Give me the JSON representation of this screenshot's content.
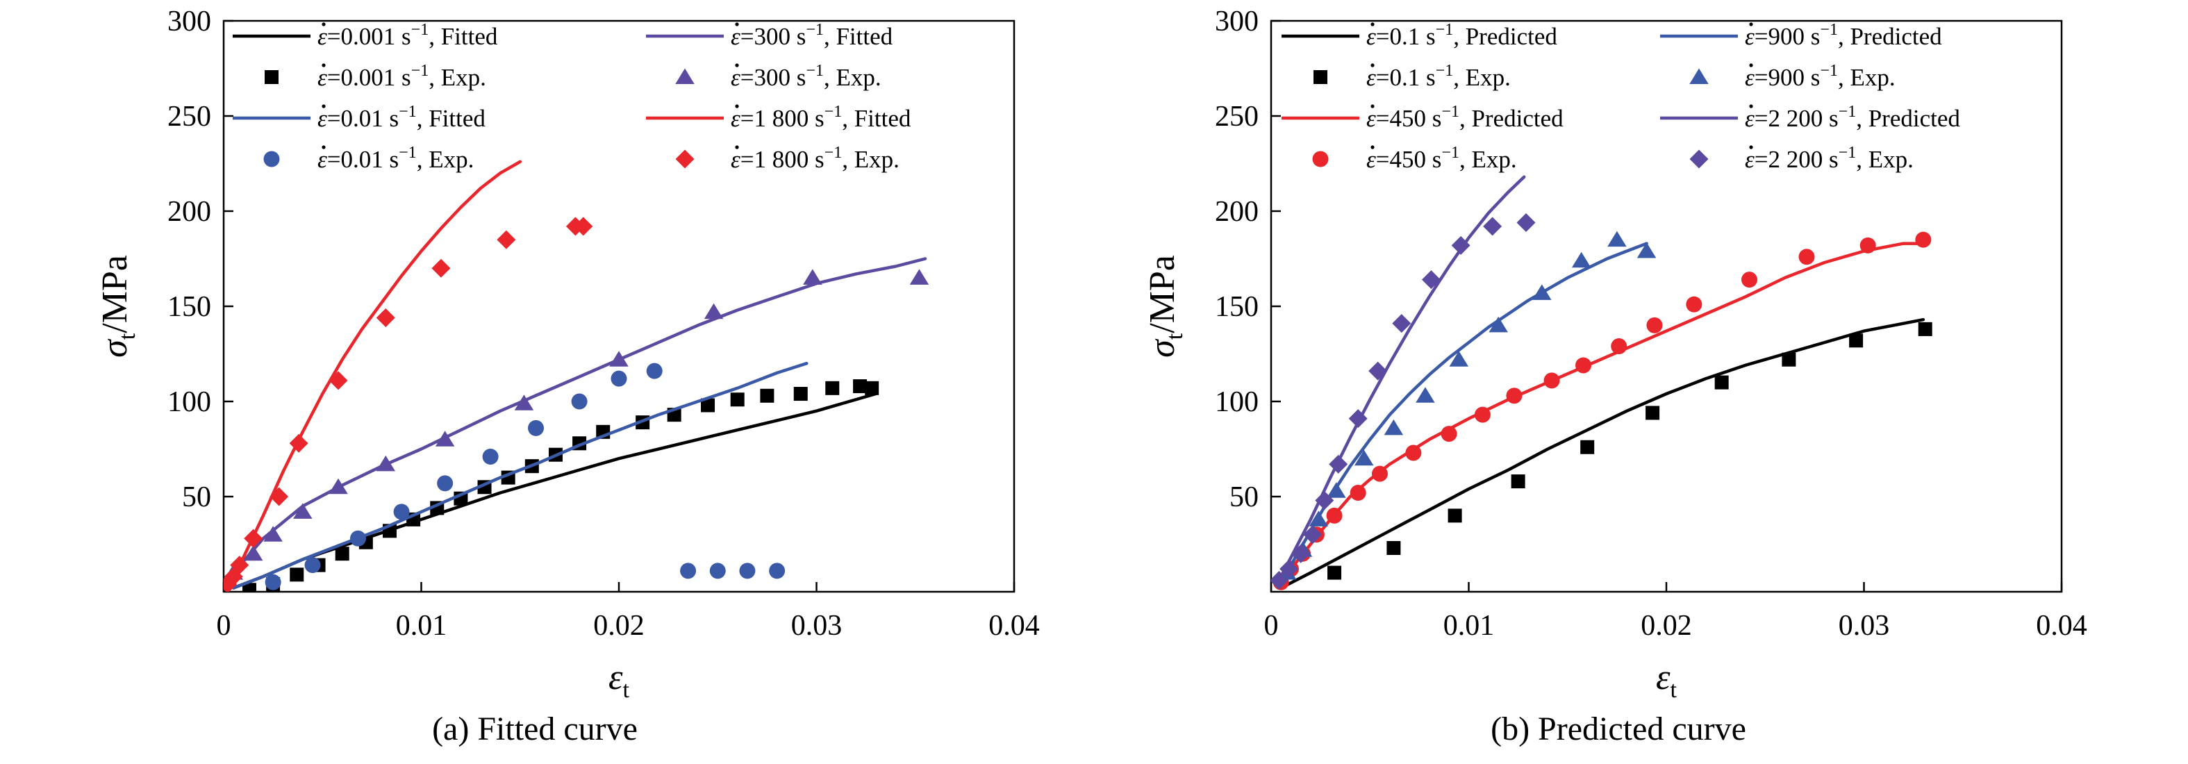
{
  "chart_data": [
    {
      "type": "line",
      "title": "",
      "caption": "(a) Fitted curve",
      "xlabel": "εt",
      "ylabel": "σt/MPa",
      "xlim": [
        0,
        0.04
      ],
      "ylim": [
        0,
        300
      ],
      "x_ticks": [
        "0",
        "0.01",
        "0.02",
        "0.03",
        "0.04"
      ],
      "y_ticks": [
        "50",
        "100",
        "150",
        "200",
        "250",
        "300"
      ],
      "legend_position": "top",
      "series": [
        {
          "name": "ε̇=0.001 s⁻¹, Fitted",
          "kind": "line",
          "color": "#000000",
          "x": [
            0.0005,
            0.002,
            0.004,
            0.006,
            0.008,
            0.01,
            0.012,
            0.014,
            0.016,
            0.018,
            0.02,
            0.022,
            0.024,
            0.026,
            0.028,
            0.03,
            0.033
          ],
          "y": [
            2,
            8,
            17,
            24,
            31,
            38,
            45,
            52,
            58,
            64,
            70,
            75,
            80,
            85,
            90,
            95,
            104
          ]
        },
        {
          "name": "ε̇=0.001 s⁻¹, Exp.",
          "kind": "marker",
          "marker": "square",
          "color": "#000000",
          "x": [
            0.0013,
            0.0025,
            0.0037,
            0.0048,
            0.006,
            0.0072,
            0.0084,
            0.0096,
            0.0108,
            0.012,
            0.0132,
            0.0144,
            0.0156,
            0.0168,
            0.018,
            0.0192,
            0.0212,
            0.0228,
            0.0245,
            0.026,
            0.0275,
            0.0292,
            0.0308,
            0.0322,
            0.0328
          ],
          "y": [
            1,
            4,
            9,
            14,
            20,
            26,
            32,
            38,
            44,
            49,
            55,
            60,
            66,
            72,
            78,
            84,
            89,
            93,
            98,
            101,
            103,
            104,
            107,
            108,
            107
          ]
        },
        {
          "name": "ε̇=0.01 s⁻¹, Fitted",
          "kind": "line",
          "color": "#3a5aa8",
          "x": [
            0.0005,
            0.002,
            0.004,
            0.006,
            0.008,
            0.01,
            0.012,
            0.014,
            0.016,
            0.018,
            0.02,
            0.022,
            0.024,
            0.026,
            0.028,
            0.0295
          ],
          "y": [
            2,
            8,
            17,
            25,
            33,
            42,
            51,
            60,
            68,
            77,
            85,
            93,
            100,
            107,
            115,
            120
          ]
        },
        {
          "name": "ε̇=0.01 s⁻¹, Exp.",
          "kind": "marker",
          "marker": "circle",
          "color": "#3a5aa8",
          "x": [
            0.0025,
            0.0045,
            0.0068,
            0.009,
            0.0112,
            0.0135,
            0.0158,
            0.018,
            0.02,
            0.0218,
            0.0235,
            0.025,
            0.0265,
            0.028
          ],
          "y": [
            5,
            14,
            28,
            42,
            57,
            71,
            86,
            100,
            112,
            116,
            11,
            11,
            11,
            11
          ]
        },
        {
          "name": "ε̇=300 s⁻¹, Fitted",
          "kind": "line",
          "color": "#5b4aa0",
          "x": [
            0.0005,
            0.002,
            0.004,
            0.006,
            0.008,
            0.01,
            0.012,
            0.014,
            0.016,
            0.018,
            0.02,
            0.022,
            0.024,
            0.026,
            0.028,
            0.03,
            0.032,
            0.034,
            0.0355
          ],
          "y": [
            10,
            28,
            45,
            56,
            66,
            75,
            85,
            95,
            104,
            113,
            122,
            131,
            140,
            148,
            155,
            162,
            167,
            171,
            175
          ]
        },
        {
          "name": "ε̇=300 s⁻¹, Exp.",
          "kind": "marker",
          "marker": "triangle",
          "color": "#5b4aa0",
          "x": [
            0.0005,
            0.0015,
            0.0025,
            0.004,
            0.0058,
            0.0082,
            0.0112,
            0.0152,
            0.02,
            0.0248,
            0.0298,
            0.0352
          ],
          "y": [
            10,
            20,
            30,
            42,
            55,
            67,
            80,
            99,
            122,
            147,
            165,
            165
          ]
        },
        {
          "name": "ε̇=1 800 s⁻¹, Fitted",
          "kind": "line",
          "color": "#e8262b",
          "x": [
            0.0003,
            0.001,
            0.002,
            0.003,
            0.004,
            0.005,
            0.006,
            0.007,
            0.008,
            0.009,
            0.01,
            0.011,
            0.012,
            0.013,
            0.014,
            0.015
          ],
          "y": [
            5,
            18,
            40,
            63,
            84,
            104,
            122,
            138,
            152,
            166,
            179,
            191,
            202,
            212,
            220,
            226
          ]
        },
        {
          "name": "ε̇=1 800 s⁻¹, Exp.",
          "kind": "marker",
          "marker": "diamond",
          "color": "#e8262b",
          "x": [
            0.0002,
            0.0005,
            0.0008,
            0.0015,
            0.0028,
            0.0038,
            0.0058,
            0.0082,
            0.011,
            0.0143,
            0.0178,
            0.0182
          ],
          "y": [
            4,
            8,
            14,
            28,
            50,
            78,
            111,
            144,
            170,
            185,
            192,
            192
          ]
        }
      ]
    },
    {
      "type": "line",
      "title": "",
      "caption": "(b) Predicted curve",
      "xlabel": "εt",
      "ylabel": "σt/MPa",
      "xlim": [
        0,
        0.04
      ],
      "ylim": [
        0,
        300
      ],
      "x_ticks": [
        "0",
        "0.01",
        "0.02",
        "0.03",
        "0.04"
      ],
      "y_ticks": [
        "50",
        "100",
        "150",
        "200",
        "250",
        "300"
      ],
      "legend_position": "top",
      "series": [
        {
          "name": "ε̇=0.1 s⁻¹, Predicted",
          "kind": "line",
          "color": "#000000",
          "x": [
            0.0005,
            0.002,
            0.004,
            0.006,
            0.008,
            0.01,
            0.012,
            0.014,
            0.016,
            0.018,
            0.02,
            0.022,
            0.024,
            0.026,
            0.028,
            0.03,
            0.032,
            0.033
          ],
          "y": [
            2,
            10,
            21,
            32,
            43,
            54,
            64,
            75,
            85,
            95,
            104,
            112,
            119,
            125,
            131,
            137,
            141,
            143
          ]
        },
        {
          "name": "ε̇=0.1 s⁻¹, Exp.",
          "kind": "marker",
          "marker": "square",
          "color": "#000000",
          "x": [
            0.0032,
            0.0062,
            0.0093,
            0.0125,
            0.016,
            0.0193,
            0.0228,
            0.0262,
            0.0296,
            0.0331
          ],
          "y": [
            10,
            23,
            40,
            58,
            76,
            94,
            110,
            122,
            132,
            138
          ]
        },
        {
          "name": "ε̇=450 s⁻¹, Predicted",
          "kind": "line",
          "color": "#e8262b",
          "x": [
            0.0005,
            0.001,
            0.002,
            0.003,
            0.004,
            0.005,
            0.006,
            0.008,
            0.01,
            0.012,
            0.014,
            0.016,
            0.018,
            0.02,
            0.022,
            0.024,
            0.026,
            0.028,
            0.03,
            0.032,
            0.033
          ],
          "y": [
            5,
            12,
            25,
            38,
            50,
            59,
            67,
            80,
            91,
            101,
            110,
            119,
            128,
            137,
            146,
            155,
            165,
            173,
            179,
            183,
            183
          ]
        },
        {
          "name": "ε̇=450 s⁻¹, Exp.",
          "kind": "marker",
          "marker": "circle",
          "color": "#e8262b",
          "x": [
            0.0005,
            0.001,
            0.0016,
            0.0023,
            0.0032,
            0.0044,
            0.0055,
            0.0072,
            0.009,
            0.0107,
            0.0123,
            0.0142,
            0.0158,
            0.0176,
            0.0194,
            0.0214,
            0.0242,
            0.0271,
            0.0302,
            0.033
          ],
          "y": [
            5,
            12,
            20,
            30,
            40,
            52,
            62,
            73,
            83,
            93,
            103,
            111,
            119,
            129,
            140,
            151,
            164,
            176,
            182,
            185
          ]
        },
        {
          "name": "ε̇=900 s⁻¹, Predicted",
          "kind": "line",
          "color": "#3a5aa8",
          "x": [
            0.0003,
            0.001,
            0.002,
            0.003,
            0.004,
            0.005,
            0.006,
            0.007,
            0.008,
            0.009,
            0.01,
            0.011,
            0.012,
            0.013,
            0.014,
            0.015,
            0.016,
            0.017,
            0.018,
            0.019
          ],
          "y": [
            3,
            14,
            32,
            50,
            66,
            80,
            93,
            104,
            114,
            123,
            131,
            139,
            146,
            153,
            159,
            165,
            170,
            175,
            179,
            183
          ]
        },
        {
          "name": "ε̇=900 s⁻¹, Exp.",
          "kind": "marker",
          "marker": "triangle",
          "color": "#3a5aa8",
          "x": [
            0.0008,
            0.0016,
            0.0024,
            0.0033,
            0.0047,
            0.0062,
            0.0078,
            0.0095,
            0.0115,
            0.0137,
            0.0157,
            0.0175,
            0.019
          ],
          "y": [
            10,
            22,
            38,
            53,
            70,
            86,
            103,
            122,
            140,
            157,
            174,
            185,
            179
          ]
        },
        {
          "name": "ε̇=2 200 s⁻¹, Predicted",
          "kind": "line",
          "color": "#5b4aa0",
          "x": [
            0.0003,
            0.001,
            0.002,
            0.003,
            0.004,
            0.005,
            0.006,
            0.007,
            0.008,
            0.009,
            0.01,
            0.011,
            0.012,
            0.0128
          ],
          "y": [
            4,
            18,
            38,
            60,
            81,
            101,
            120,
            138,
            155,
            171,
            186,
            199,
            210,
            218
          ]
        },
        {
          "name": "ε̇=2 200 s⁻¹, Exp.",
          "kind": "marker",
          "marker": "diamond",
          "color": "#5b4aa0",
          "x": [
            0.0004,
            0.0009,
            0.0015,
            0.0021,
            0.0027,
            0.0034,
            0.0044,
            0.0054,
            0.0066,
            0.0081,
            0.0096,
            0.0112,
            0.0129
          ],
          "y": [
            6,
            12,
            20,
            30,
            48,
            67,
            91,
            116,
            141,
            164,
            182,
            192,
            194
          ]
        }
      ]
    }
  ]
}
